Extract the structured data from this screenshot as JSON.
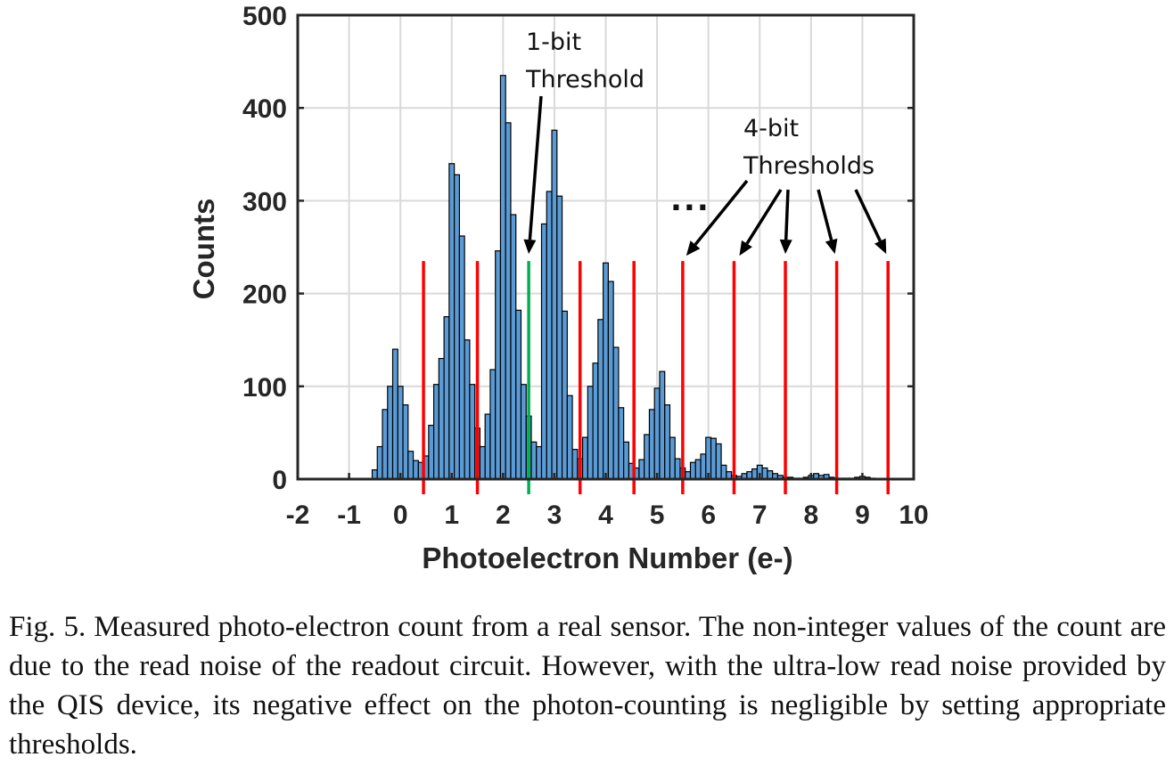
{
  "chart_data": {
    "type": "bar",
    "xlabel": "Photoelectron Number (e-)",
    "ylabel": "Counts",
    "xlim": [
      -2,
      10
    ],
    "ylim": [
      0,
      500
    ],
    "xticks": [
      "-2",
      "-1",
      "0",
      "1",
      "2",
      "3",
      "4",
      "5",
      "6",
      "7",
      "8",
      "9",
      "10"
    ],
    "yticks": [
      "0",
      "100",
      "200",
      "300",
      "400",
      "500"
    ],
    "grid": true,
    "bin_width": 0.1,
    "series": [
      {
        "x": [
          -0.5,
          -0.4,
          -0.3,
          -0.2,
          -0.1,
          0.0,
          0.1,
          0.2,
          0.3,
          0.4,
          0.5,
          0.6,
          0.7,
          0.8,
          0.9,
          1.0,
          1.1,
          1.2,
          1.3,
          1.4,
          1.5,
          1.6,
          1.7,
          1.8,
          1.9,
          2.0,
          2.1,
          2.2,
          2.3,
          2.4,
          2.5,
          2.6,
          2.7,
          2.8,
          2.9,
          3.0,
          3.1,
          3.2,
          3.3,
          3.4,
          3.5,
          3.6,
          3.7,
          3.8,
          3.9,
          4.0,
          4.1,
          4.2,
          4.3,
          4.4,
          4.5,
          4.6,
          4.7,
          4.8,
          4.9,
          5.0,
          5.1,
          5.2,
          5.3,
          5.4,
          5.5,
          5.6,
          5.7,
          5.8,
          5.9,
          6.0,
          6.1,
          6.2,
          6.3,
          6.4,
          6.5,
          6.6,
          6.7,
          6.8,
          6.9,
          7.0,
          7.1,
          7.2,
          7.3,
          7.4,
          7.5,
          7.6,
          7.7,
          7.8,
          7.9,
          8.0,
          8.1,
          8.2,
          8.3,
          8.4,
          8.5,
          8.6,
          8.7,
          8.8,
          8.9,
          9.0,
          9.1,
          9.2
        ],
        "values": [
          10,
          35,
          75,
          100,
          140,
          100,
          80,
          30,
          20,
          18,
          25,
          58,
          102,
          130,
          175,
          340,
          328,
          262,
          150,
          102,
          55,
          35,
          70,
          118,
          246,
          435,
          384,
          285,
          182,
          102,
          68,
          40,
          35,
          275,
          310,
          376,
          305,
          181,
          90,
          32,
          22,
          45,
          100,
          125,
          172,
          233,
          213,
          142,
          77,
          40,
          17,
          12,
          21,
          48,
          75,
          98,
          116,
          80,
          45,
          22,
          12,
          8,
          18,
          21,
          27,
          45,
          44,
          38,
          15,
          8,
          4,
          3,
          6,
          8,
          11,
          15,
          12,
          9,
          6,
          4,
          2,
          2,
          1,
          1,
          2,
          4,
          6,
          4,
          5,
          2,
          1,
          1,
          1,
          1,
          2,
          3,
          2,
          1
        ]
      }
    ],
    "thresholds": [
      {
        "x": 0.45,
        "color": "#ff0000"
      },
      {
        "x": 1.5,
        "color": "#ff0000"
      },
      {
        "x": 2.5,
        "color": "#00b050"
      },
      {
        "x": 3.5,
        "color": "#ff0000"
      },
      {
        "x": 4.55,
        "color": "#ff0000"
      },
      {
        "x": 5.5,
        "color": "#ff0000"
      },
      {
        "x": 6.5,
        "color": "#ff0000"
      },
      {
        "x": 7.5,
        "color": "#ff0000"
      },
      {
        "x": 8.5,
        "color": "#ff0000"
      },
      {
        "x": 9.5,
        "color": "#ff0000"
      }
    ],
    "threshold_height": 235,
    "annotations": {
      "one_bit": {
        "line1": "1-bit",
        "line2": "Threshold",
        "points_to_x": 2.5
      },
      "four_bit": {
        "line1": "4-bit",
        "line2": "Thresholds",
        "points_to_x": [
          5.5,
          6.5,
          7.5,
          8.5,
          9.5
        ]
      },
      "ellipsis": "..."
    },
    "colors": {
      "bar_fill": "#5b9bd5",
      "bar_edge": "#000000",
      "grid": "#d9d9d9",
      "axis": "#262626",
      "threshold_red": "#ff0000",
      "threshold_green": "#00b050"
    }
  },
  "caption": "Fig. 5.  Measured photo-electron count from a real sensor.  The non-integer values of the count are due to the read noise of the readout circuit.  However, with the ultra-low read noise provided by the QIS device, its negative effect on the photon-counting is negligible by setting appropriate thresholds."
}
